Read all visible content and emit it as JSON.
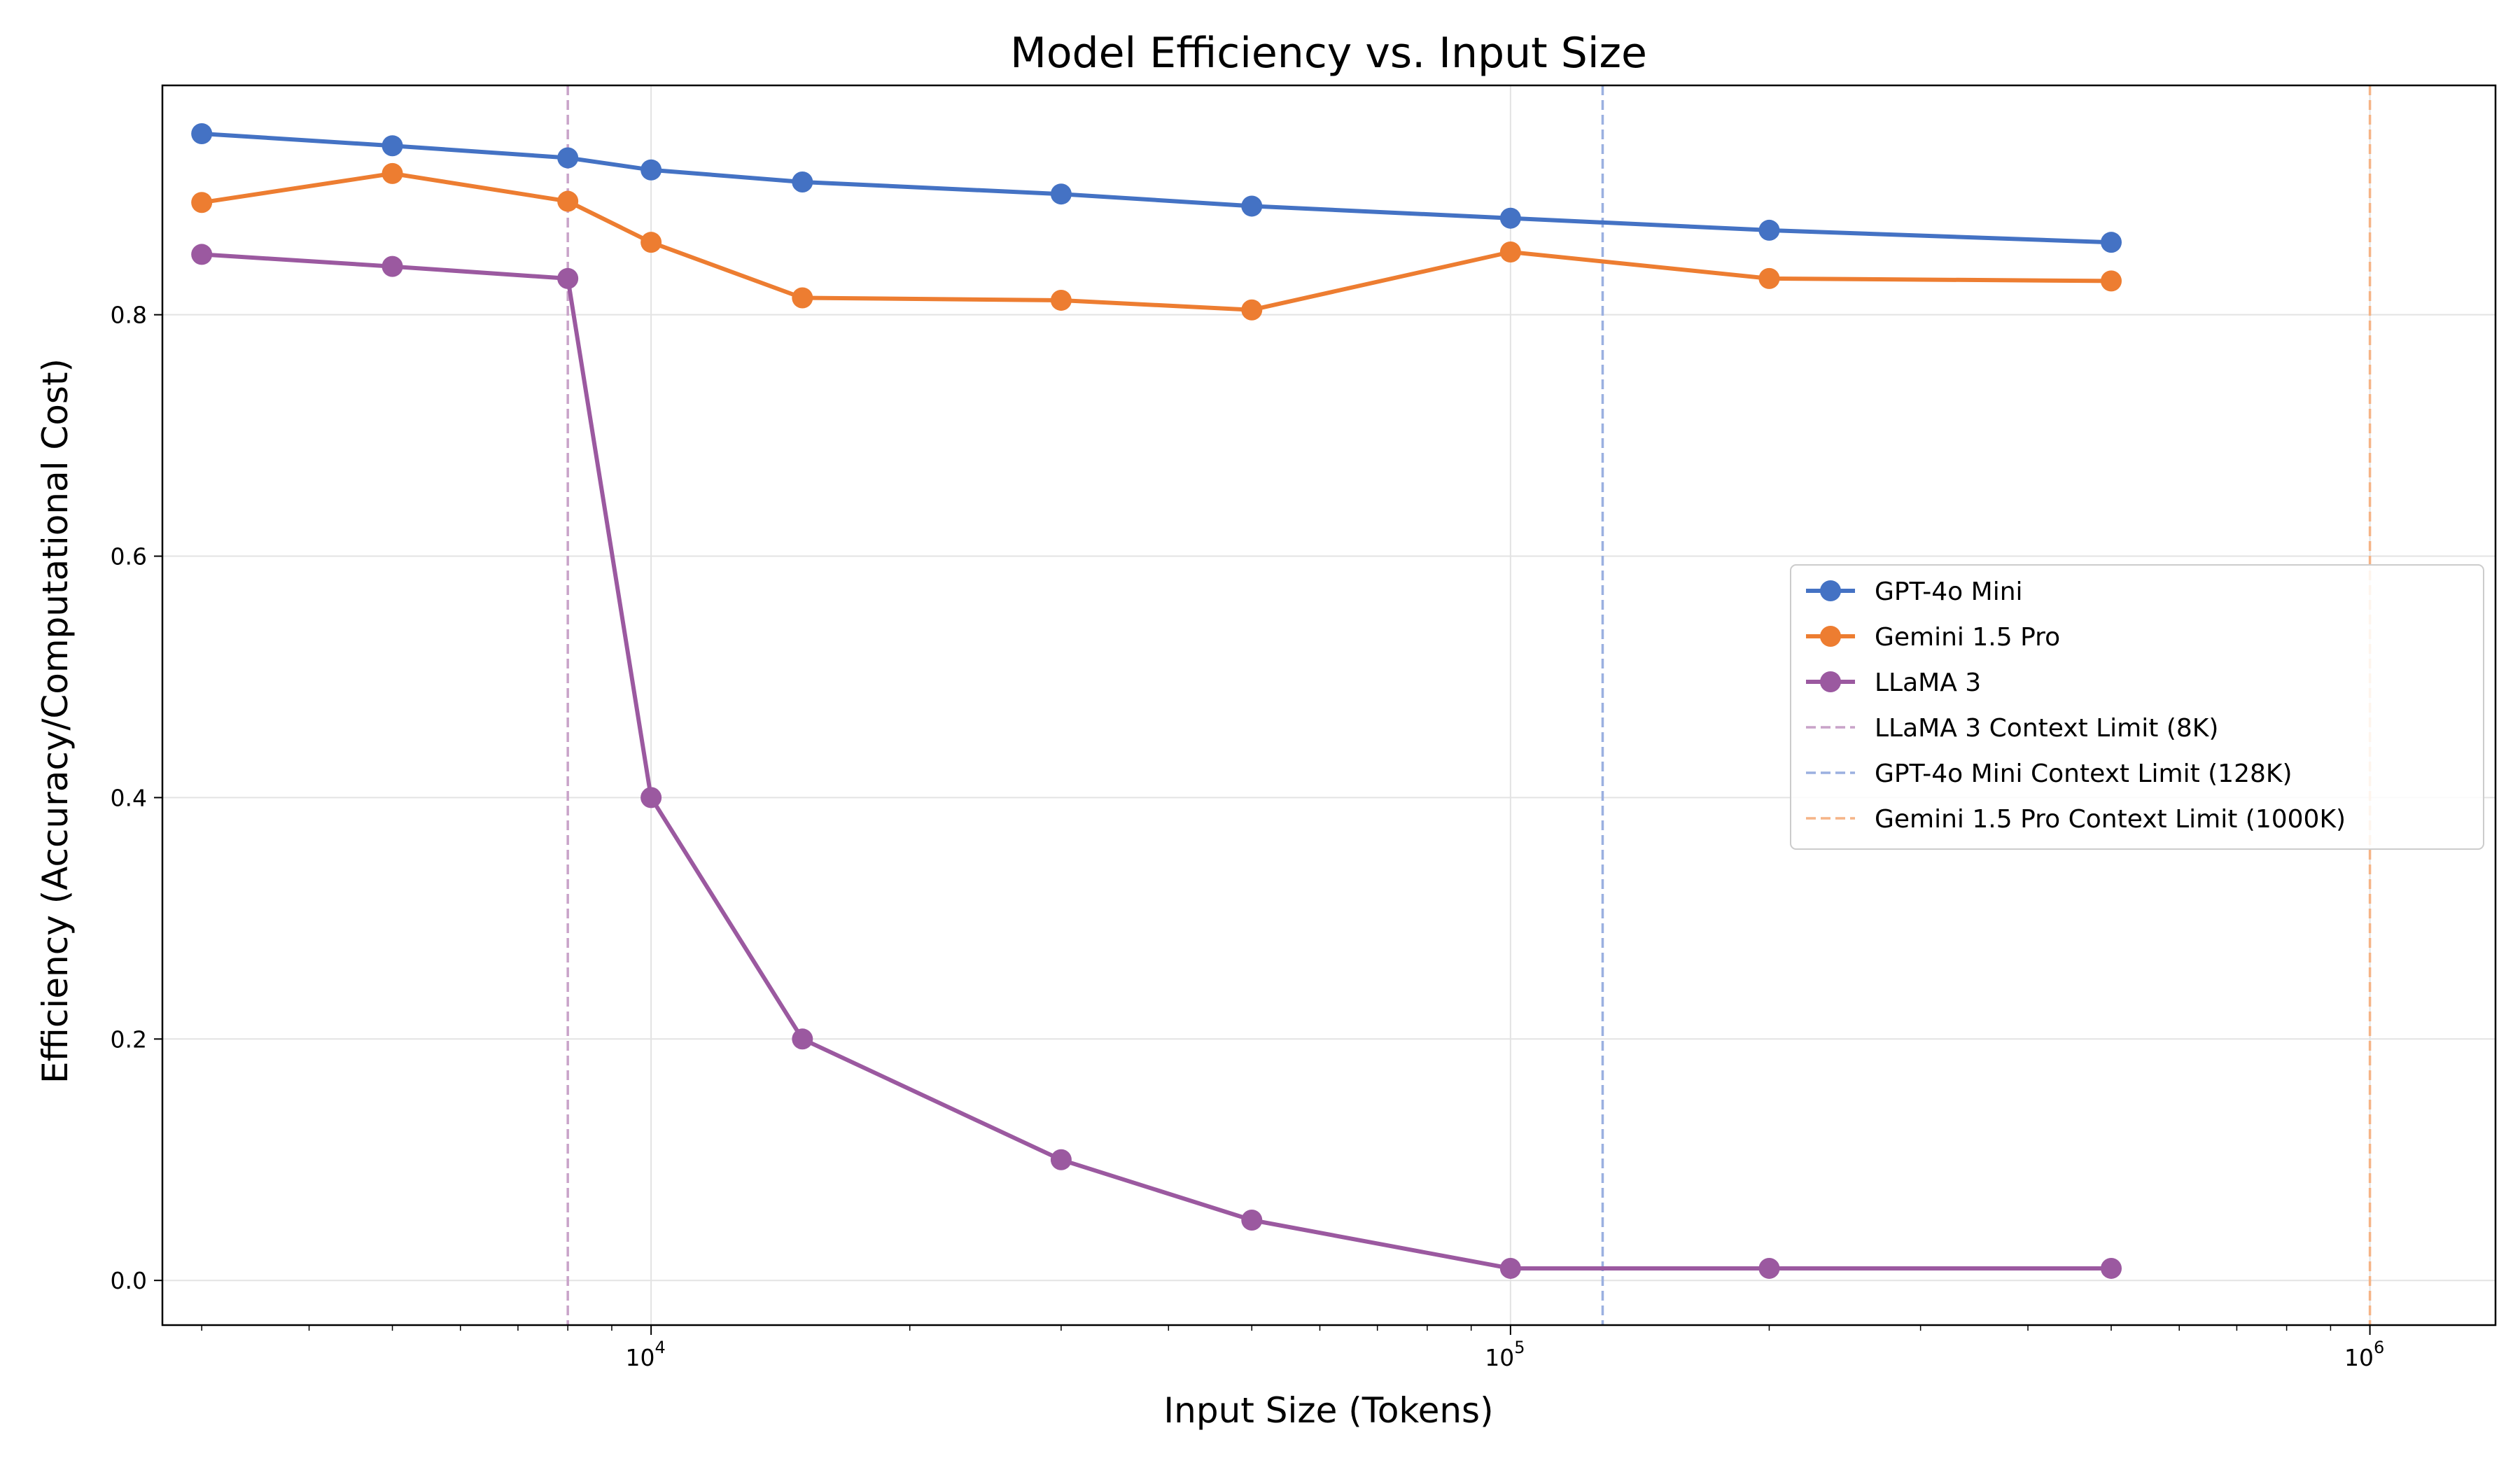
{
  "chart_data": {
    "type": "line",
    "title": "Model Efficiency vs. Input Size",
    "xlabel": "Input Size (Tokens)",
    "ylabel": "Efficiency (Accuracy/Computational Cost)",
    "xscale": "log",
    "xlim": [
      2700,
      1400000
    ],
    "ylim": [
      -0.037,
      0.99
    ],
    "x_ticks": [
      {
        "value": 10000,
        "base": "10",
        "exp": "4"
      },
      {
        "value": 100000,
        "base": "10",
        "exp": "5"
      },
      {
        "value": 1000000,
        "base": "10",
        "exp": "6"
      }
    ],
    "y_ticks": [
      {
        "value": 0.0,
        "label": "0.0"
      },
      {
        "value": 0.2,
        "label": "0.2"
      },
      {
        "value": 0.4,
        "label": "0.4"
      },
      {
        "value": 0.6,
        "label": "0.6"
      },
      {
        "value": 0.8,
        "label": "0.8"
      }
    ],
    "grid": true,
    "legend_position": "center-right",
    "x": [
      3000,
      5000,
      8000,
      10000,
      15000,
      30000,
      50000,
      100000,
      200000,
      500000
    ],
    "series": [
      {
        "name": "GPT-4o Mini",
        "color": "#4472c4",
        "values": [
          0.95,
          0.94,
          0.93,
          0.92,
          0.91,
          0.9,
          0.89,
          0.88,
          0.87,
          0.86
        ]
      },
      {
        "name": "Gemini 1.5 Pro",
        "color": "#ed7d31",
        "values": [
          0.893,
          0.917,
          0.894,
          0.86,
          0.814,
          0.812,
          0.804,
          0.852,
          0.83,
          0.828
        ]
      },
      {
        "name": "LLaMA 3",
        "color": "#9b59a0",
        "values": [
          0.85,
          0.84,
          0.83,
          0.4,
          0.2,
          0.1,
          0.05,
          0.01,
          0.01,
          0.01
        ]
      }
    ],
    "reference_lines": [
      {
        "name": "LLaMA 3 Context Limit (8K)",
        "x": 8000,
        "color": "#c9a3c9"
      },
      {
        "name": "GPT-4o Mini Context Limit (128K)",
        "x": 128000,
        "color": "#9bb0e0"
      },
      {
        "name": "Gemini 1.5 Pro Context Limit (1000K)",
        "x": 1000000,
        "color": "#f5b487"
      }
    ]
  }
}
